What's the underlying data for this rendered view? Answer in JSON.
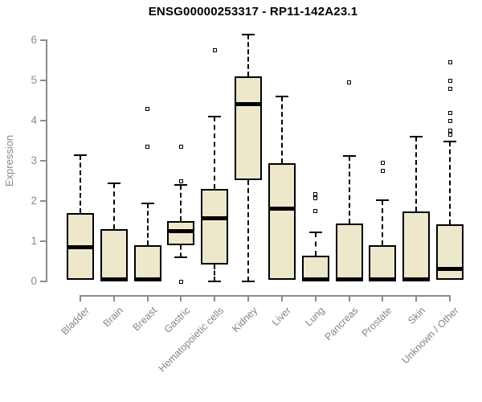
{
  "header": {
    "title": "ENSG00000253317 - RP11-142A23.1"
  },
  "chart_data": {
    "type": "boxplot",
    "title": "ENSG00000253317 - RP11-142A23.1",
    "xlabel": "",
    "ylabel": "Expression",
    "ylim": [
      0,
      6
    ],
    "yticks": [
      "0",
      "1",
      "2",
      "3",
      "4",
      "5",
      "6"
    ],
    "grid": false,
    "legend": false,
    "categories": [
      "Bladder",
      "Brain",
      "Breast",
      "Gastric",
      "Hematopoietic cells",
      "Kidney",
      "Liver",
      "Lung",
      "Pancreas",
      "Prostate",
      "Skin",
      "Unknown / Other"
    ],
    "series": [
      {
        "name": "Bladder",
        "whisker_low": null,
        "q1": 0.05,
        "median": 0.85,
        "q3": 1.7,
        "whisker_high": 3.15,
        "outliers": []
      },
      {
        "name": "Brain",
        "whisker_low": null,
        "q1": 0.02,
        "median": 0.06,
        "q3": 1.3,
        "whisker_high": 2.45,
        "outliers": []
      },
      {
        "name": "Breast",
        "whisker_low": null,
        "q1": 0.02,
        "median": 0.06,
        "q3": 0.9,
        "whisker_high": 1.95,
        "outliers": [
          3.35,
          4.3
        ]
      },
      {
        "name": "Gastric",
        "whisker_low": 0.6,
        "q1": 0.9,
        "median": 1.25,
        "q3": 1.5,
        "whisker_high": 2.4,
        "outliers": [
          0.0,
          2.5,
          3.35
        ]
      },
      {
        "name": "Hematopoietic cells",
        "whisker_low": 0.0,
        "q1": 0.42,
        "median": 1.58,
        "q3": 2.3,
        "whisker_high": 4.1,
        "outliers": [
          5.75
        ]
      },
      {
        "name": "Kidney",
        "whisker_low": 0.0,
        "q1": 2.52,
        "median": 4.42,
        "q3": 5.1,
        "whisker_high": 6.15,
        "outliers": []
      },
      {
        "name": "Liver",
        "whisker_low": null,
        "q1": 0.04,
        "median": 1.82,
        "q3": 2.95,
        "whisker_high": 4.6,
        "outliers": []
      },
      {
        "name": "Lung",
        "whisker_low": null,
        "q1": 0.02,
        "median": 0.06,
        "q3": 0.65,
        "whisker_high": 1.22,
        "outliers": [
          1.75,
          2.08,
          2.18
        ]
      },
      {
        "name": "Pancreas",
        "whisker_low": null,
        "q1": 0.02,
        "median": 0.06,
        "q3": 1.45,
        "whisker_high": 3.12,
        "outliers": [
          4.95
        ]
      },
      {
        "name": "Prostate",
        "whisker_low": null,
        "q1": 0.02,
        "median": 0.06,
        "q3": 0.9,
        "whisker_high": 2.02,
        "outliers": [
          2.75,
          2.95
        ]
      },
      {
        "name": "Skin",
        "whisker_low": null,
        "q1": 0.02,
        "median": 0.06,
        "q3": 1.75,
        "whisker_high": 3.6,
        "outliers": []
      },
      {
        "name": "Unknown / Other",
        "whisker_low": null,
        "q1": 0.04,
        "median": 0.32,
        "q3": 1.42,
        "whisker_high": 3.48,
        "outliers": [
          3.65,
          3.75,
          4.0,
          4.2,
          4.8,
          5.0,
          5.45
        ]
      }
    ],
    "colors": {
      "box_fill": "#EDE7CC",
      "box_border": "#000000",
      "median": "#000000",
      "axis": "#8C8C8C",
      "y_tick_label": "#878D96",
      "x_tick_label": "#858585",
      "title": "#000000",
      "background": "#FFFFFF"
    }
  }
}
